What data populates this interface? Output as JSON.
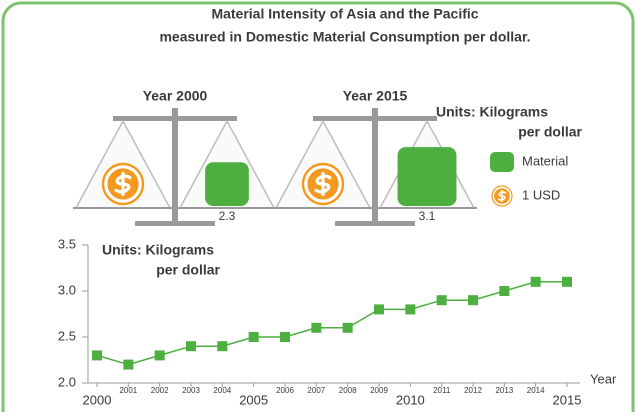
{
  "chart_data": {
    "type": "line",
    "title": [
      "Material Intensity of Asia and the Pacific",
      "measured in Domestic Material Consumption per dollar."
    ],
    "scales": [
      {
        "label": "Year 2000",
        "value": 2.3
      },
      {
        "label": "Year 2015",
        "value": 3.1
      }
    ],
    "legend_units": [
      "Units:  Kilograms",
      "per dollar"
    ],
    "legend": [
      {
        "label": "Material"
      },
      {
        "label": "1 USD"
      }
    ],
    "y_label": [
      "Units:  Kilograms",
      "per dollar"
    ],
    "x_label": "Year",
    "categories": [
      "2000",
      "2001",
      "2002",
      "2003",
      "2004",
      "2005",
      "2006",
      "2007",
      "2008",
      "2009",
      "2010",
      "2011",
      "2012",
      "2013",
      "2014",
      "2015"
    ],
    "series": [
      {
        "name": "Material",
        "color": "#4caf3f",
        "values": [
          2.3,
          2.2,
          2.3,
          2.4,
          2.4,
          2.5,
          2.5,
          2.6,
          2.6,
          2.8,
          2.8,
          2.9,
          2.9,
          3.0,
          3.1,
          3.1
        ]
      }
    ],
    "coin_color": "#f39a1e",
    "ylim": [
      2.0,
      3.5
    ],
    "yticks": [
      {
        "value": 2.0,
        "label": "2.0"
      },
      2.5,
      {
        "value": 3.0,
        "label": "3.0"
      },
      3.5
    ]
  }
}
